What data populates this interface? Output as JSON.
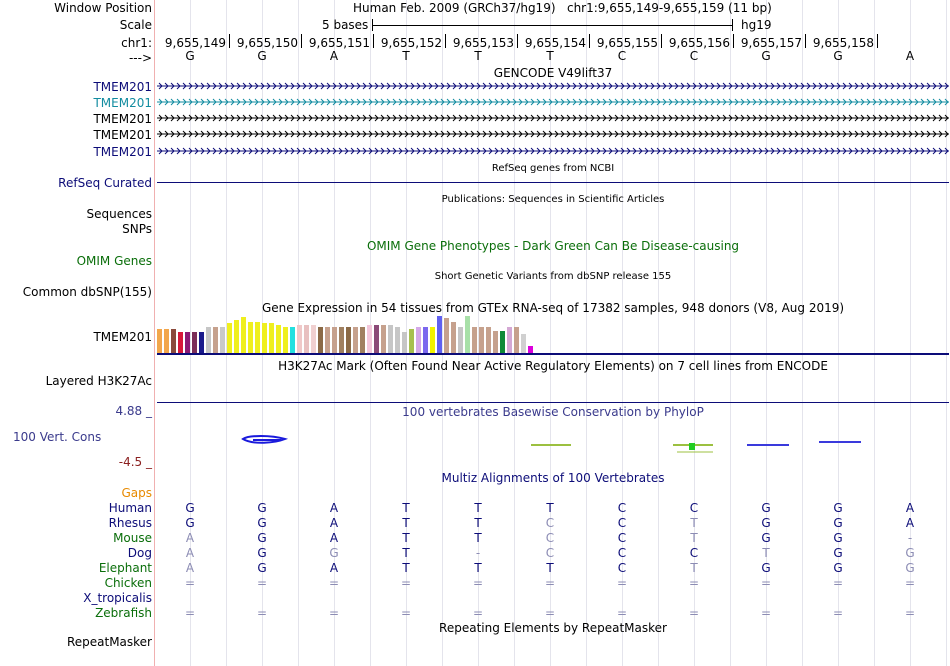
{
  "header": {
    "assembly_title": "Human Feb. 2009 (GRCh37/hg19)",
    "position": "chr1:9,655,149-9,655,159 (11 bp)",
    "scale_label": "5 bases",
    "assembly_short": "hg19",
    "chrom_label": "chr1:",
    "strand_label": "--->",
    "window_position_label": "Window Position",
    "scale_row_label": "Scale"
  },
  "ruler": {
    "ticks": [
      "9,655,149",
      "9,655,150",
      "9,655,151",
      "9,655,152",
      "9,655,153",
      "9,655,154",
      "9,655,155",
      "9,655,156",
      "9,655,157",
      "9,655,158"
    ]
  },
  "sequence": [
    "G",
    "G",
    "A",
    "T",
    "T",
    "T",
    "C",
    "C",
    "G",
    "G",
    "A"
  ],
  "tracks": {
    "gencode": {
      "title": "GENCODE V49lift37",
      "genes": [
        "TMEM201",
        "TMEM201",
        "TMEM201",
        "TMEM201",
        "TMEM201"
      ],
      "colors": [
        "#0c0c78",
        "#128ca0",
        "#000000",
        "#000000",
        "#0c0c78"
      ]
    },
    "refseq": {
      "title": "RefSeq genes from NCBI",
      "label": "RefSeq Curated"
    },
    "publications": {
      "title": "Publications: Sequences in Scientific Articles",
      "labels": [
        "Sequences",
        "SNPs"
      ]
    },
    "omim": {
      "title": "OMIM Gene Phenotypes - Dark Green Can Be Disease-causing",
      "label": "OMIM Genes"
    },
    "dbsnp": {
      "title": "Short Genetic Variants from dbSNP release 155",
      "label": "Common dbSNP(155)"
    },
    "gtex": {
      "title": "Gene Expression in 54 tissues from GTEx RNA-seq of 17382 samples, 948 donors (V8, Aug 2019)",
      "label": "TMEM201",
      "bars": [
        0.66,
        0.66,
        0.66,
        0.57,
        0.57,
        0.57,
        0.57,
        0.7,
        0.7,
        0.7,
        0.82,
        0.9,
        0.96,
        0.84,
        0.84,
        0.8,
        0.8,
        0.77,
        0.7,
        0.7,
        0.77,
        0.77,
        0.77,
        0.7,
        0.7,
        0.7,
        0.7,
        0.7,
        0.7,
        0.7,
        0.77,
        0.77,
        0.77,
        0.77,
        0.7,
        0.57,
        0.66,
        0.7,
        0.7,
        0.7,
        1.0,
        0.94,
        0.84,
        0.7,
        1.0,
        0.7,
        0.7,
        0.7,
        0.6,
        0.6,
        0.7,
        0.7,
        0.5,
        0.18
      ],
      "colors": [
        "#f2a64b",
        "#f2a64b",
        "#8b4a3c",
        "#d7193b",
        "#8b1a74",
        "#7c2e59",
        "#1a1a8c",
        "#c6c6c6",
        "#c6a18d",
        "#c9c9c9",
        "#efef1e",
        "#efef1e",
        "#efef1e",
        "#efef1e",
        "#efef1e",
        "#efef1e",
        "#efef1e",
        "#efef1e",
        "#efef1e",
        "#22e0e0",
        "#f0c8c8",
        "#e8c0c0",
        "#f0d0d0",
        "#8b6a46",
        "#c6a18d",
        "#c6a18d",
        "#a08060",
        "#8b6a46",
        "#c6a18d",
        "#a08060",
        "#f4c8dc",
        "#8b4a78",
        "#c6a18d",
        "#c6c6c6",
        "#c6c6c6",
        "#c6c6c6",
        "#a7c04f",
        "#d4a8e8",
        "#7b68ee",
        "#f2f200",
        "#6060f0",
        "#c6a18d",
        "#c6a18d",
        "#c6c6c6",
        "#a8e0a8",
        "#c6a18d",
        "#c6a18d",
        "#c6a18d",
        "#c6a18d",
        "#0e8a38",
        "#d4a8d4",
        "#c6a18d",
        "#d0d0d0",
        "#dc00dc"
      ]
    },
    "h3k27ac": {
      "title": "H3K27Ac Mark (Often Found Near Active Regulatory Elements) on 7 cell lines from ENCODE",
      "label": "Layered H3K27Ac"
    },
    "phylop": {
      "title": "100 vertebrates Basewise Conservation by PhyloP",
      "label": "100 Vert. Cons",
      "max_label": "4.88 _",
      "min_label": "-4.5 _"
    },
    "multiz": {
      "title": "Multiz Alignments of 100 Vertebrates"
    },
    "repeatmasker": {
      "title": "Repeating Elements by RepeatMasker",
      "label": "RepeatMasker"
    }
  },
  "alignments": {
    "gaps_label": "Gaps",
    "rows": [
      {
        "species": "Human",
        "bases": [
          "G",
          "G",
          "A",
          "T",
          "T",
          "T",
          "C",
          "C",
          "G",
          "G",
          "A"
        ],
        "dim": []
      },
      {
        "species": "Rhesus",
        "bases": [
          "G",
          "G",
          "A",
          "T",
          "T",
          "C",
          "C",
          "T",
          "G",
          "G",
          "A"
        ],
        "dim": [
          5,
          7
        ]
      },
      {
        "species": "Mouse",
        "bases": [
          "A",
          "G",
          "A",
          "T",
          "T",
          "C",
          "C",
          "T",
          "G",
          "G",
          "-"
        ],
        "dim": [
          0,
          5,
          7,
          10
        ]
      },
      {
        "species": "Dog",
        "bases": [
          "A",
          "G",
          "G",
          "T",
          "-",
          "C",
          "C",
          "C",
          "T",
          "G",
          "G"
        ],
        "dim": [
          0,
          2,
          4,
          5,
          8,
          10
        ]
      },
      {
        "species": "Elephant",
        "bases": [
          "A",
          "G",
          "A",
          "T",
          "T",
          "T",
          "C",
          "T",
          "G",
          "G",
          "G"
        ],
        "dim": [
          0,
          7,
          10
        ]
      },
      {
        "species": "Chicken",
        "bases": [
          "=",
          "=",
          "=",
          "=",
          "=",
          "=",
          "=",
          "=",
          "=",
          "=",
          "="
        ],
        "dim": [
          0,
          1,
          2,
          3,
          4,
          5,
          6,
          7,
          8,
          9,
          10
        ]
      },
      {
        "species": "X_tropicalis",
        "bases": [
          "",
          "",
          "",
          "",
          "",
          "",
          "",
          "",
          "",
          "",
          ""
        ],
        "dim": []
      },
      {
        "species": "Zebrafish",
        "bases": [
          "=",
          "=",
          "=",
          "=",
          "=",
          "=",
          "=",
          "=",
          "=",
          "=",
          "="
        ],
        "dim": [
          0,
          1,
          2,
          3,
          4,
          5,
          6,
          7,
          8,
          9,
          10
        ]
      }
    ]
  },
  "colors": {
    "label_blue": "#0c0c78",
    "label_green": "#0a6e0a",
    "gaps_orange": "#e88a00",
    "phylop_blue": "#3a3a8c",
    "phylop_red": "#8b2020",
    "dim_base": "#8c8cb4",
    "omim_green": "#0a6e0a"
  }
}
